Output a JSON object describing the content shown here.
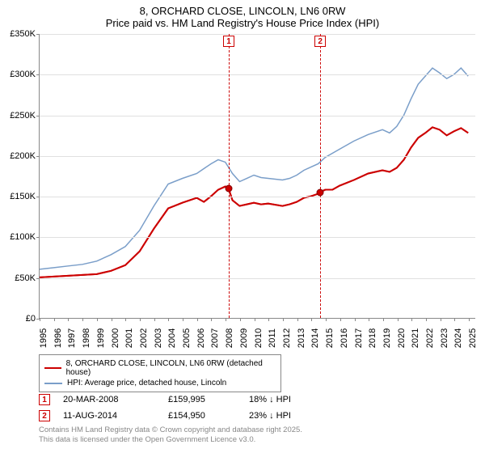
{
  "title_line1": "8, ORCHARD CLOSE, LINCOLN, LN6 0RW",
  "title_line2": "Price paid vs. HM Land Registry's House Price Index (HPI)",
  "chart": {
    "type": "line",
    "background_color": "#ffffff",
    "grid_color": "#e0e0e0",
    "axis_color": "#888888",
    "xlim": [
      1995,
      2025.5
    ],
    "ylim": [
      0,
      350000
    ],
    "ytick_step": 50000,
    "ytick_labels": [
      "£0",
      "£50K",
      "£100K",
      "£150K",
      "£200K",
      "£250K",
      "£300K",
      "£350K"
    ],
    "xticks": [
      1995,
      1996,
      1997,
      1998,
      1999,
      2000,
      2001,
      2002,
      2003,
      2004,
      2005,
      2006,
      2007,
      2008,
      2009,
      2010,
      2011,
      2012,
      2013,
      2014,
      2015,
      2016,
      2017,
      2018,
      2019,
      2020,
      2021,
      2022,
      2023,
      2024,
      2025
    ],
    "series": [
      {
        "name": "price_paid",
        "label": "8, ORCHARD CLOSE, LINCOLN, LN6 0RW (detached house)",
        "color": "#cc0000",
        "line_width": 2,
        "data": [
          [
            1995,
            50000
          ],
          [
            1996,
            51000
          ],
          [
            1997,
            52000
          ],
          [
            1998,
            53000
          ],
          [
            1999,
            54000
          ],
          [
            2000,
            58000
          ],
          [
            2001,
            65000
          ],
          [
            2002,
            82000
          ],
          [
            2003,
            110000
          ],
          [
            2004,
            135000
          ],
          [
            2005,
            142000
          ],
          [
            2005.5,
            145000
          ],
          [
            2006,
            148000
          ],
          [
            2006.5,
            143000
          ],
          [
            2007,
            150000
          ],
          [
            2007.5,
            158000
          ],
          [
            2008,
            162000
          ],
          [
            2008.22,
            159995
          ],
          [
            2008.5,
            145000
          ],
          [
            2009,
            138000
          ],
          [
            2009.5,
            140000
          ],
          [
            2010,
            142000
          ],
          [
            2010.5,
            140000
          ],
          [
            2011,
            141000
          ],
          [
            2012,
            138000
          ],
          [
            2012.5,
            140000
          ],
          [
            2013,
            143000
          ],
          [
            2013.5,
            148000
          ],
          [
            2014,
            150000
          ],
          [
            2014.5,
            153000
          ],
          [
            2014.61,
            154950
          ],
          [
            2015,
            158000
          ],
          [
            2015.5,
            158000
          ],
          [
            2016,
            163000
          ],
          [
            2017,
            170000
          ],
          [
            2018,
            178000
          ],
          [
            2019,
            182000
          ],
          [
            2019.5,
            180000
          ],
          [
            2020,
            185000
          ],
          [
            2020.5,
            195000
          ],
          [
            2021,
            210000
          ],
          [
            2021.5,
            222000
          ],
          [
            2022,
            228000
          ],
          [
            2022.5,
            235000
          ],
          [
            2023,
            232000
          ],
          [
            2023.5,
            225000
          ],
          [
            2024,
            230000
          ],
          [
            2024.5,
            234000
          ],
          [
            2025,
            228000
          ]
        ]
      },
      {
        "name": "hpi",
        "label": "HPI: Average price, detached house, Lincoln",
        "color": "#7a9ec9",
        "line_width": 1.5,
        "data": [
          [
            1995,
            60000
          ],
          [
            1996,
            62000
          ],
          [
            1997,
            64000
          ],
          [
            1998,
            66000
          ],
          [
            1999,
            70000
          ],
          [
            2000,
            78000
          ],
          [
            2001,
            88000
          ],
          [
            2002,
            108000
          ],
          [
            2003,
            138000
          ],
          [
            2004,
            165000
          ],
          [
            2005,
            172000
          ],
          [
            2006,
            178000
          ],
          [
            2007,
            190000
          ],
          [
            2007.5,
            195000
          ],
          [
            2008,
            192000
          ],
          [
            2008.5,
            178000
          ],
          [
            2009,
            168000
          ],
          [
            2009.5,
            172000
          ],
          [
            2010,
            176000
          ],
          [
            2010.5,
            173000
          ],
          [
            2011,
            172000
          ],
          [
            2012,
            170000
          ],
          [
            2012.5,
            172000
          ],
          [
            2013,
            176000
          ],
          [
            2013.5,
            182000
          ],
          [
            2014,
            186000
          ],
          [
            2014.5,
            190000
          ],
          [
            2015,
            198000
          ],
          [
            2016,
            208000
          ],
          [
            2017,
            218000
          ],
          [
            2018,
            226000
          ],
          [
            2019,
            232000
          ],
          [
            2019.5,
            228000
          ],
          [
            2020,
            236000
          ],
          [
            2020.5,
            250000
          ],
          [
            2021,
            270000
          ],
          [
            2021.5,
            288000
          ],
          [
            2022,
            298000
          ],
          [
            2022.5,
            308000
          ],
          [
            2023,
            302000
          ],
          [
            2023.5,
            295000
          ],
          [
            2024,
            300000
          ],
          [
            2024.5,
            308000
          ],
          [
            2025,
            298000
          ]
        ]
      }
    ],
    "markers": [
      {
        "id": "1",
        "x": 2008.22,
        "color": "#cc0000",
        "label_top_y": -6
      },
      {
        "id": "2",
        "x": 2014.61,
        "color": "#cc0000",
        "label_top_y": -6
      }
    ],
    "sale_points": [
      {
        "x": 2008.22,
        "y": 159995,
        "color": "#cc0000"
      },
      {
        "x": 2014.61,
        "y": 154950,
        "color": "#cc0000"
      }
    ]
  },
  "legend": {
    "items": [
      {
        "color": "#cc0000",
        "label": "8, ORCHARD CLOSE, LINCOLN, LN6 0RW (detached house)"
      },
      {
        "color": "#7a9ec9",
        "label": "HPI: Average price, detached house, Lincoln"
      }
    ]
  },
  "sales": [
    {
      "marker": "1",
      "marker_color": "#cc0000",
      "date": "20-MAR-2008",
      "price": "£159,995",
      "diff": "18% ↓ HPI"
    },
    {
      "marker": "2",
      "marker_color": "#cc0000",
      "date": "11-AUG-2014",
      "price": "£154,950",
      "diff": "23% ↓ HPI"
    }
  ],
  "footer": {
    "line1": "Contains HM Land Registry data © Crown copyright and database right 2025.",
    "line2": "This data is licensed under the Open Government Licence v3.0."
  }
}
